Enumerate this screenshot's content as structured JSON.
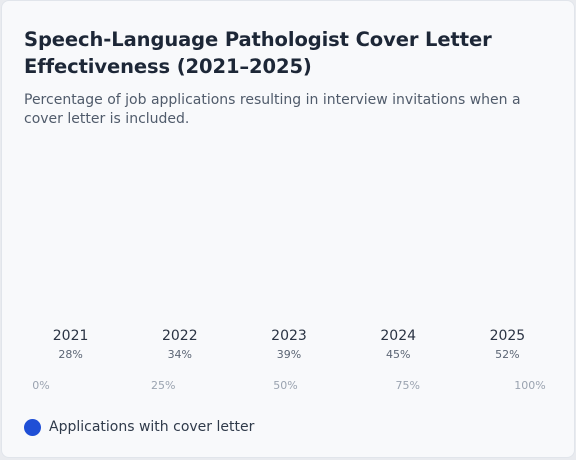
{
  "chart_data": {
    "type": "bar",
    "title": "Speech-Language Pathologist Cover Letter Effectiveness (2021–2025)",
    "subtitle": "Percentage of job applications resulting in interview invitations when a cover letter is included.",
    "categories": [
      "2021",
      "2022",
      "2023",
      "2024",
      "2025"
    ],
    "series": [
      {
        "name": "Applications with cover letter",
        "values": [
          28,
          34,
          39,
          45,
          52
        ],
        "value_labels": [
          "28%",
          "34%",
          "39%",
          "45%",
          "52%"
        ]
      }
    ],
    "xaxis_ticks": [
      "0%",
      "25%",
      "50%",
      "75%",
      "100%"
    ],
    "ylim": [
      0,
      100
    ],
    "legend": "bottom-left",
    "colors": {
      "series": "#1f4fd6",
      "category_text": "#2b3444",
      "value_text": "#5b6574",
      "tick_text": "#9aa3b0"
    }
  }
}
